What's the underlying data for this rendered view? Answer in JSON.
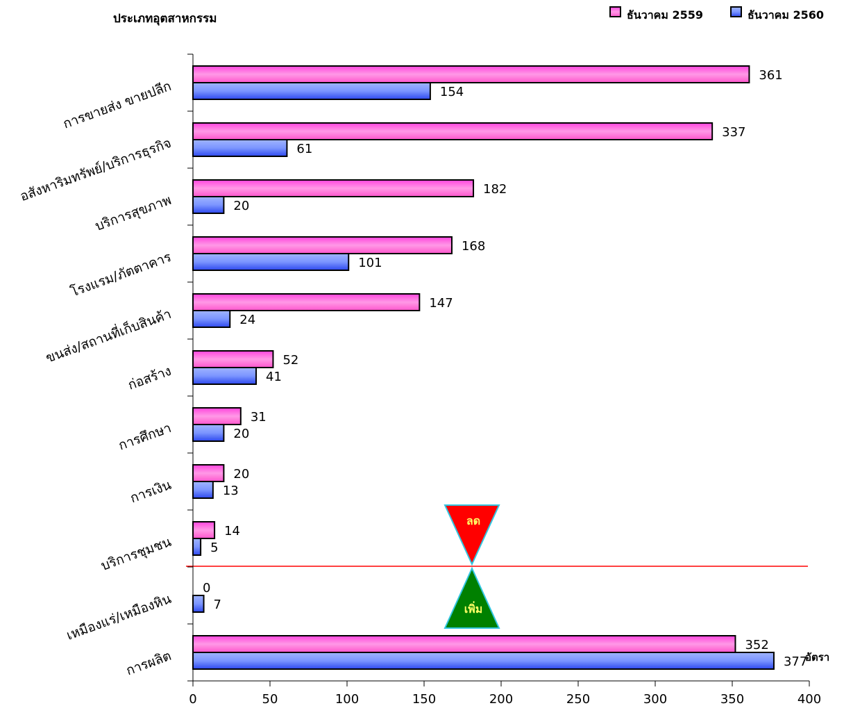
{
  "chart_data": {
    "type": "bar",
    "orientation": "horizontal",
    "title": "ประเภทอุตสาหกรรม",
    "xlabel": "อัตรา",
    "ylabel": "",
    "xlim": [
      0,
      400
    ],
    "x_ticks": [
      0,
      50,
      100,
      150,
      200,
      250,
      300,
      350,
      400
    ],
    "grid": false,
    "legend_position": "top-right",
    "categories": [
      "การขายส่ง ขายปลีก",
      "อสังหาริมทรัพย์/บริการธุรกิจ",
      "บริการสุขภาพ",
      "โรงแรม/ภัตตาคาร",
      "ขนส่ง/สถานที่เก็บสินค้า",
      "ก่อสร้าง",
      "การศึกษา",
      "การเงิน",
      "บริการชุมชน",
      "เหมืองแร่/เหมืองหิน",
      "การผลิต"
    ],
    "series": [
      {
        "name": "ธันวาคม 2559",
        "color": "#ff66cc",
        "values": [
          361,
          337,
          182,
          168,
          147,
          52,
          31,
          20,
          14,
          0,
          352
        ]
      },
      {
        "name": "ธันวาคม 2560",
        "color": "#6688ff",
        "values": [
          154,
          61,
          20,
          101,
          24,
          41,
          20,
          13,
          5,
          7,
          377
        ]
      }
    ],
    "divider": {
      "after_category_index": 8,
      "color": "#ff0000"
    },
    "annotations": [
      {
        "text": "ลด",
        "shape": "triangle-down",
        "fill": "#ff0000",
        "text_color": "#ffff66"
      },
      {
        "text": "เพิ่ม",
        "shape": "triangle-up",
        "fill": "#008000",
        "text_color": "#ffff66"
      }
    ]
  }
}
